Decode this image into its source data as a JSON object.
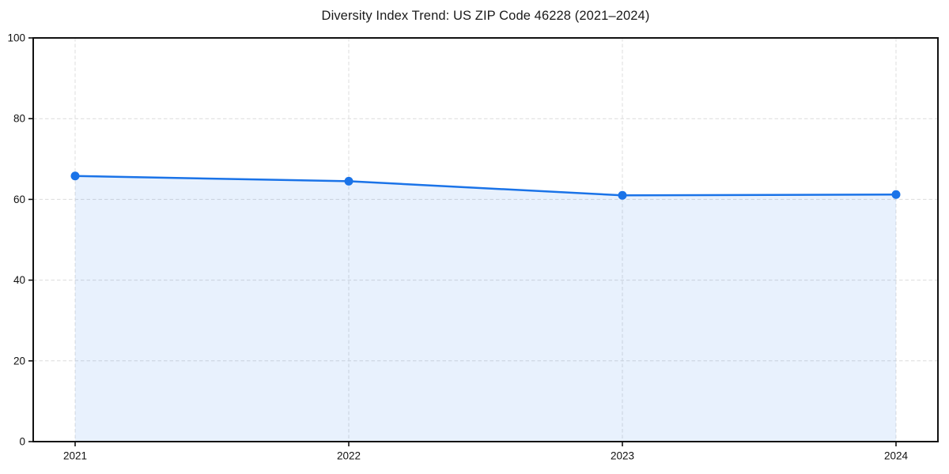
{
  "chart_data": {
    "type": "area",
    "title": "Diversity Index Trend: US ZIP Code 46228 (2021–2024)",
    "categories": [
      "2021",
      "2022",
      "2023",
      "2024"
    ],
    "series": [
      {
        "name": "Diversity Index",
        "values": [
          65.8,
          64.5,
          61.0,
          61.2
        ]
      }
    ],
    "xlabel": "",
    "ylabel": "",
    "ylim": [
      0,
      100
    ],
    "yticks": [
      0,
      20,
      40,
      60,
      80,
      100
    ],
    "grid": true,
    "grid_style": "dashed",
    "legend": false,
    "marker": "circle",
    "colors": {
      "line": "#1a73e8",
      "marker": "#1a73e8",
      "fill": "#1a73e8",
      "fill_opacity": 0.1,
      "grid": "#dcdcdc",
      "frame": "#111111",
      "text": "#111111",
      "background": "#ffffff"
    }
  }
}
